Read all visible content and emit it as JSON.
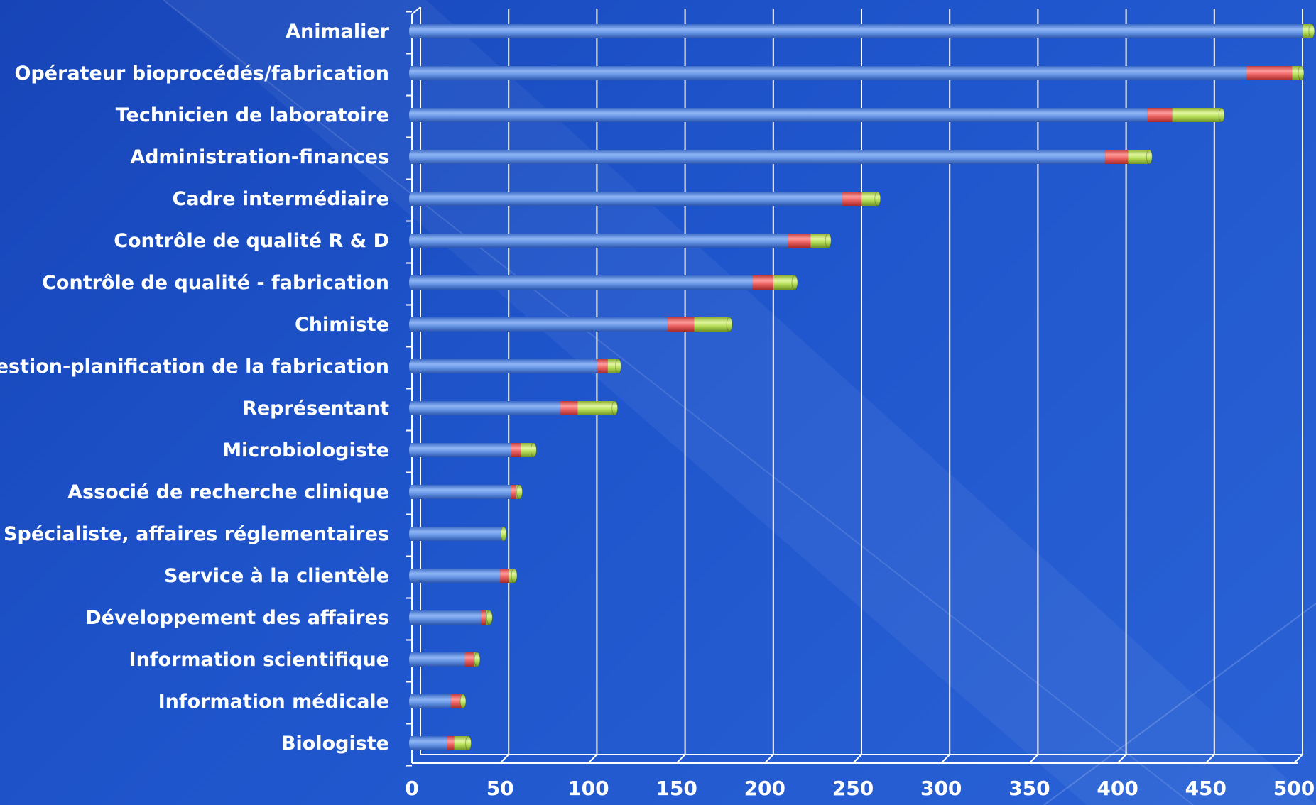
{
  "chart_data": {
    "type": "bar",
    "orientation": "horizontal",
    "stacked": true,
    "categories": [
      "Animalier",
      "Opérateur bioprocédés/fabrication",
      "Technicien de laboratoire",
      "Administration-finances",
      "Cadre intermédiaire",
      "Contrôle de qualité R & D",
      "Contrôle de qualité - fabrication",
      "Chimiste",
      "Gestion-planification de la fabrication",
      "Représentant ",
      "Microbiologiste",
      "Associé de recherche clinique",
      "Spécialiste, affaires réglementaires",
      "Service à la clientèle",
      "Développement des affaires",
      "Information scientifique",
      "Information médicale",
      "Biologiste"
    ],
    "series": [
      {
        "values": [
          505,
          473,
          417,
          393,
          244,
          213,
          193,
          145,
          105,
          84,
          56,
          56,
          51,
          50,
          39,
          30,
          22,
          20
        ]
      },
      {
        "values": [
          0,
          26,
          14,
          13,
          11,
          13,
          12,
          15,
          6,
          10,
          6,
          3,
          0,
          5,
          3,
          5,
          6,
          4
        ]
      },
      {
        "values": [
          5,
          5,
          28,
          12,
          9,
          10,
          12,
          20,
          6,
          21,
          7,
          2,
          1,
          3,
          2,
          2,
          1,
          8
        ]
      }
    ],
    "colors": {
      "series": [
        "#5f92e6",
        "#ec6363",
        "#b8e05a"
      ],
      "axis": "#ffffff",
      "text": "#ffffff"
    },
    "xlim": [
      0,
      500
    ],
    "xticks": [
      "0",
      "50",
      "100",
      "150",
      "200",
      "250",
      "300",
      "350",
      "400",
      "450",
      "500"
    ],
    "grid": "vertical",
    "legend": "none"
  }
}
